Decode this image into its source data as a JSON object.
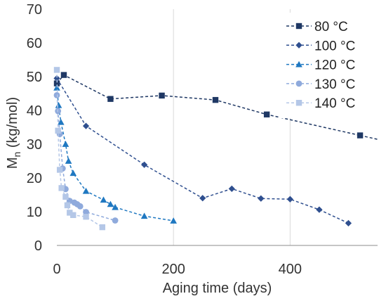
{
  "chart_data": {
    "type": "line",
    "title": "",
    "xlabel": "Aging time (days)",
    "ylabel_main": "M",
    "ylabel_sub": "n",
    "ylabel_unit": " (kg/mol)",
    "xlim": [
      0,
      550
    ],
    "ylim": [
      0,
      70
    ],
    "xticks": [
      0,
      200,
      400
    ],
    "yticks": [
      0,
      10,
      20,
      30,
      40,
      50,
      60,
      70
    ],
    "grid": {
      "x": true,
      "y": false
    },
    "legend": "top-right",
    "series": [
      {
        "name": "80 °C",
        "marker": "square",
        "color": "#1f3864",
        "x": [
          0,
          12,
          92,
          180,
          272,
          360,
          520
        ],
        "y": [
          48.0,
          50.5,
          43.4,
          44.4,
          43.1,
          38.8,
          32.6
        ]
      },
      {
        "name": "100 °C",
        "marker": "diamond",
        "color": "#2f4f8f",
        "x": [
          0,
          50,
          150,
          250,
          300,
          350,
          400,
          450,
          500
        ],
        "y": [
          49.5,
          35.4,
          23.9,
          14.0,
          16.8,
          13.9,
          13.7,
          10.6,
          6.6
        ]
      },
      {
        "name": "120 °C",
        "marker": "triangle",
        "color": "#1f78c1",
        "x": [
          0,
          3,
          7,
          15,
          20,
          28,
          50,
          80,
          92,
          100,
          150,
          200
        ],
        "y": [
          46.7,
          41.5,
          36.5,
          30.0,
          25.0,
          21.4,
          16.1,
          13.5,
          12.2,
          11.3,
          8.7,
          7.3
        ]
      },
      {
        "name": "130 °C",
        "marker": "circle",
        "color": "#8faadc",
        "x": [
          0,
          2,
          5,
          10,
          15,
          22,
          30,
          35,
          40,
          50,
          100
        ],
        "y": [
          44.5,
          39.8,
          33.0,
          22.8,
          16.7,
          13.2,
          12.7,
          12.2,
          11.6,
          9.9,
          7.4
        ]
      },
      {
        "name": "140 °C",
        "marker": "square",
        "color": "#b4c7e7",
        "x": [
          0,
          2,
          5,
          8,
          15,
          18,
          22,
          28,
          50,
          78
        ],
        "y": [
          52.0,
          34.0,
          22.4,
          17.0,
          14.4,
          11.9,
          9.7,
          9.0,
          8.5,
          5.4
        ]
      }
    ]
  }
}
